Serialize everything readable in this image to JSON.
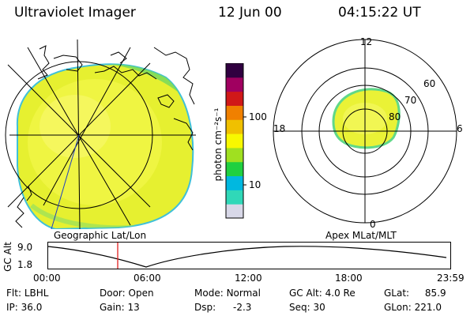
{
  "header": {
    "instrument": "Ultraviolet Imager",
    "date": "12 Jun 00",
    "time": "04:15:22 UT"
  },
  "colorbar": {
    "unit_label": "photon cm⁻²s⁻¹",
    "ticks": [
      "100",
      "10"
    ],
    "colors": [
      "#d8d8e8",
      "#30d8b8",
      "#00b8e0",
      "#20d040",
      "#a0e020",
      "#f8f800",
      "#f0c000",
      "#f08000",
      "#d01818",
      "#a00060",
      "#300040"
    ]
  },
  "geo_panel": {
    "label": "Geographic Lat/Lon"
  },
  "polar_panel": {
    "label": "Apex MLat/MLT",
    "mlt_labels": [
      "12",
      "18",
      "6",
      "0"
    ],
    "lat_labels": [
      "60",
      "70",
      "80"
    ]
  },
  "timeline": {
    "ylabel": "GC Alt",
    "y_ticks": [
      "9.0",
      "1.8"
    ],
    "x_ticks": [
      "00:00",
      "06:00",
      "12:00",
      "18:00",
      "23:59"
    ],
    "current_time_marker": "04:15:22"
  },
  "footer": {
    "filt_label": "Flt:",
    "filt_value": "LBHL",
    "door_label": "Door:",
    "door_value": "Open",
    "mode_label": "Mode:",
    "mode_value": "Normal",
    "gcalt_label": "GC Alt:",
    "gcalt_value": "4.0 Re",
    "glat_label": "GLat:",
    "glat_value": "85.9",
    "ip_label": "IP:",
    "ip_value": "36.0",
    "gain_label": "Gain:",
    "gain_value": "13",
    "dsp_label": "Dsp:",
    "dsp_value": "-2.3",
    "seq_label": "Seq:",
    "seq_value": "30",
    "glon_label": "GLon:",
    "glon_value": "221.0"
  }
}
